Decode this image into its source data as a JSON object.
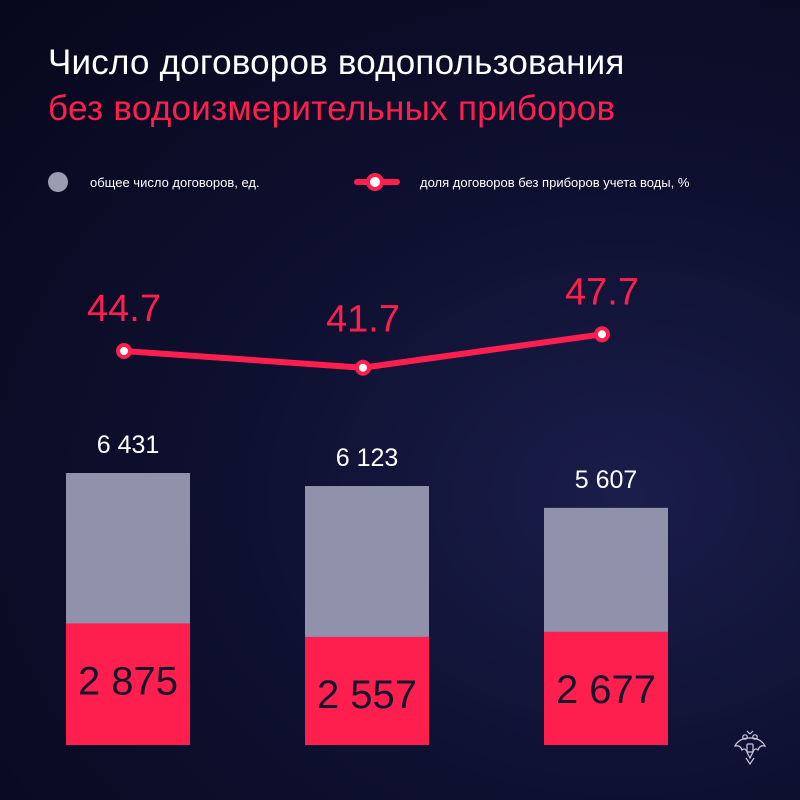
{
  "title": "Число договоров водопользования",
  "subtitle": "без водоизмерительных приборов",
  "legend": {
    "total_label": "общее число договоров, ед.",
    "share_label": "доля договоров без приборов учета воды, %"
  },
  "colors": {
    "background": "#0b0c26",
    "total": "#8f92aa",
    "without_meters": "#ff1f4f",
    "line": "#ff1f4f",
    "text": "#ffffff"
  },
  "icons": {
    "emblem": "double-headed-eagle-emblem"
  },
  "chart_data": {
    "type": "bar",
    "categories": [
      "",
      "",
      ""
    ],
    "series": [
      {
        "name": "общее число договоров, ед.",
        "values": [
          6431,
          6123,
          5607
        ],
        "labels": [
          "6 431",
          "6 123",
          "5 607"
        ]
      },
      {
        "name": "",
        "values": [
          2875,
          2557,
          2677
        ],
        "labels": [
          "2 875",
          "2 557",
          "2 677"
        ]
      },
      {
        "name": "доля договоров без приборов учета воды, %",
        "type": "line",
        "values": [
          44.7,
          41.7,
          47.7
        ],
        "labels": [
          "44.7",
          "41.7",
          "47.7"
        ]
      }
    ],
    "xlabel": "",
    "ylabel": "",
    "grid": false,
    "legend_position": "top"
  }
}
